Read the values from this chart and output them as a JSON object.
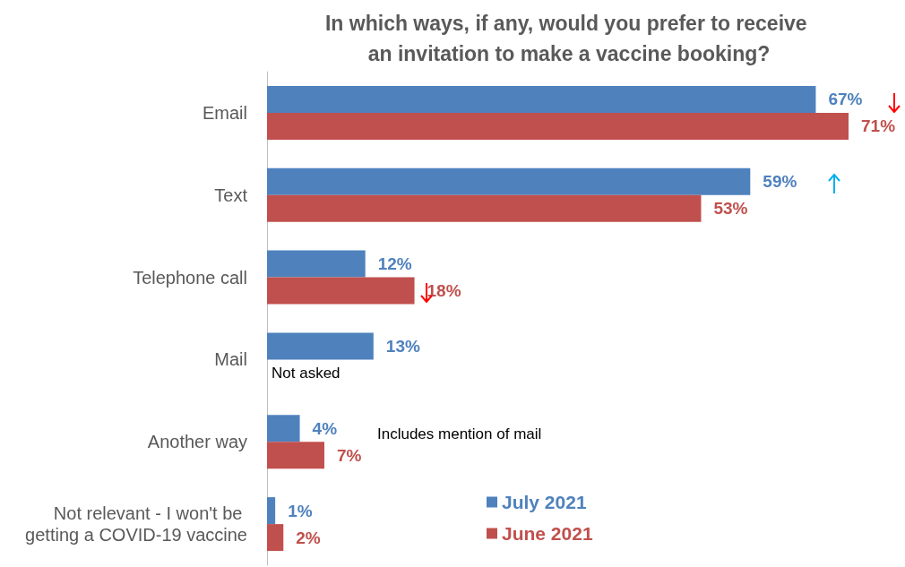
{
  "chart_data": {
    "type": "bar",
    "orientation": "horizontal",
    "title": "In which ways, if any, would you prefer to receive an invitation to make a vaccine booking?",
    "categories": [
      "Email",
      "Text",
      "Telephone call",
      "Mail",
      "Another way",
      "Not relevant - I won't be getting a COVID-19 vaccine"
    ],
    "series": [
      {
        "name": "July 2021",
        "color": "#4f81bd",
        "values": [
          67,
          59,
          12,
          13,
          4,
          1
        ],
        "value_labels": [
          "67%",
          "59%",
          "12%",
          "13%",
          "4%",
          "1%"
        ]
      },
      {
        "name": "June 2021",
        "color": "#c0504d",
        "values": [
          71,
          53,
          18,
          null,
          7,
          2
        ],
        "value_labels": [
          "71%",
          "53%",
          "18%",
          null,
          "7%",
          "2%"
        ]
      }
    ],
    "annotations": [
      "Not asked",
      "Includes mention of mail"
    ],
    "legend": "bottom right"
  }
}
